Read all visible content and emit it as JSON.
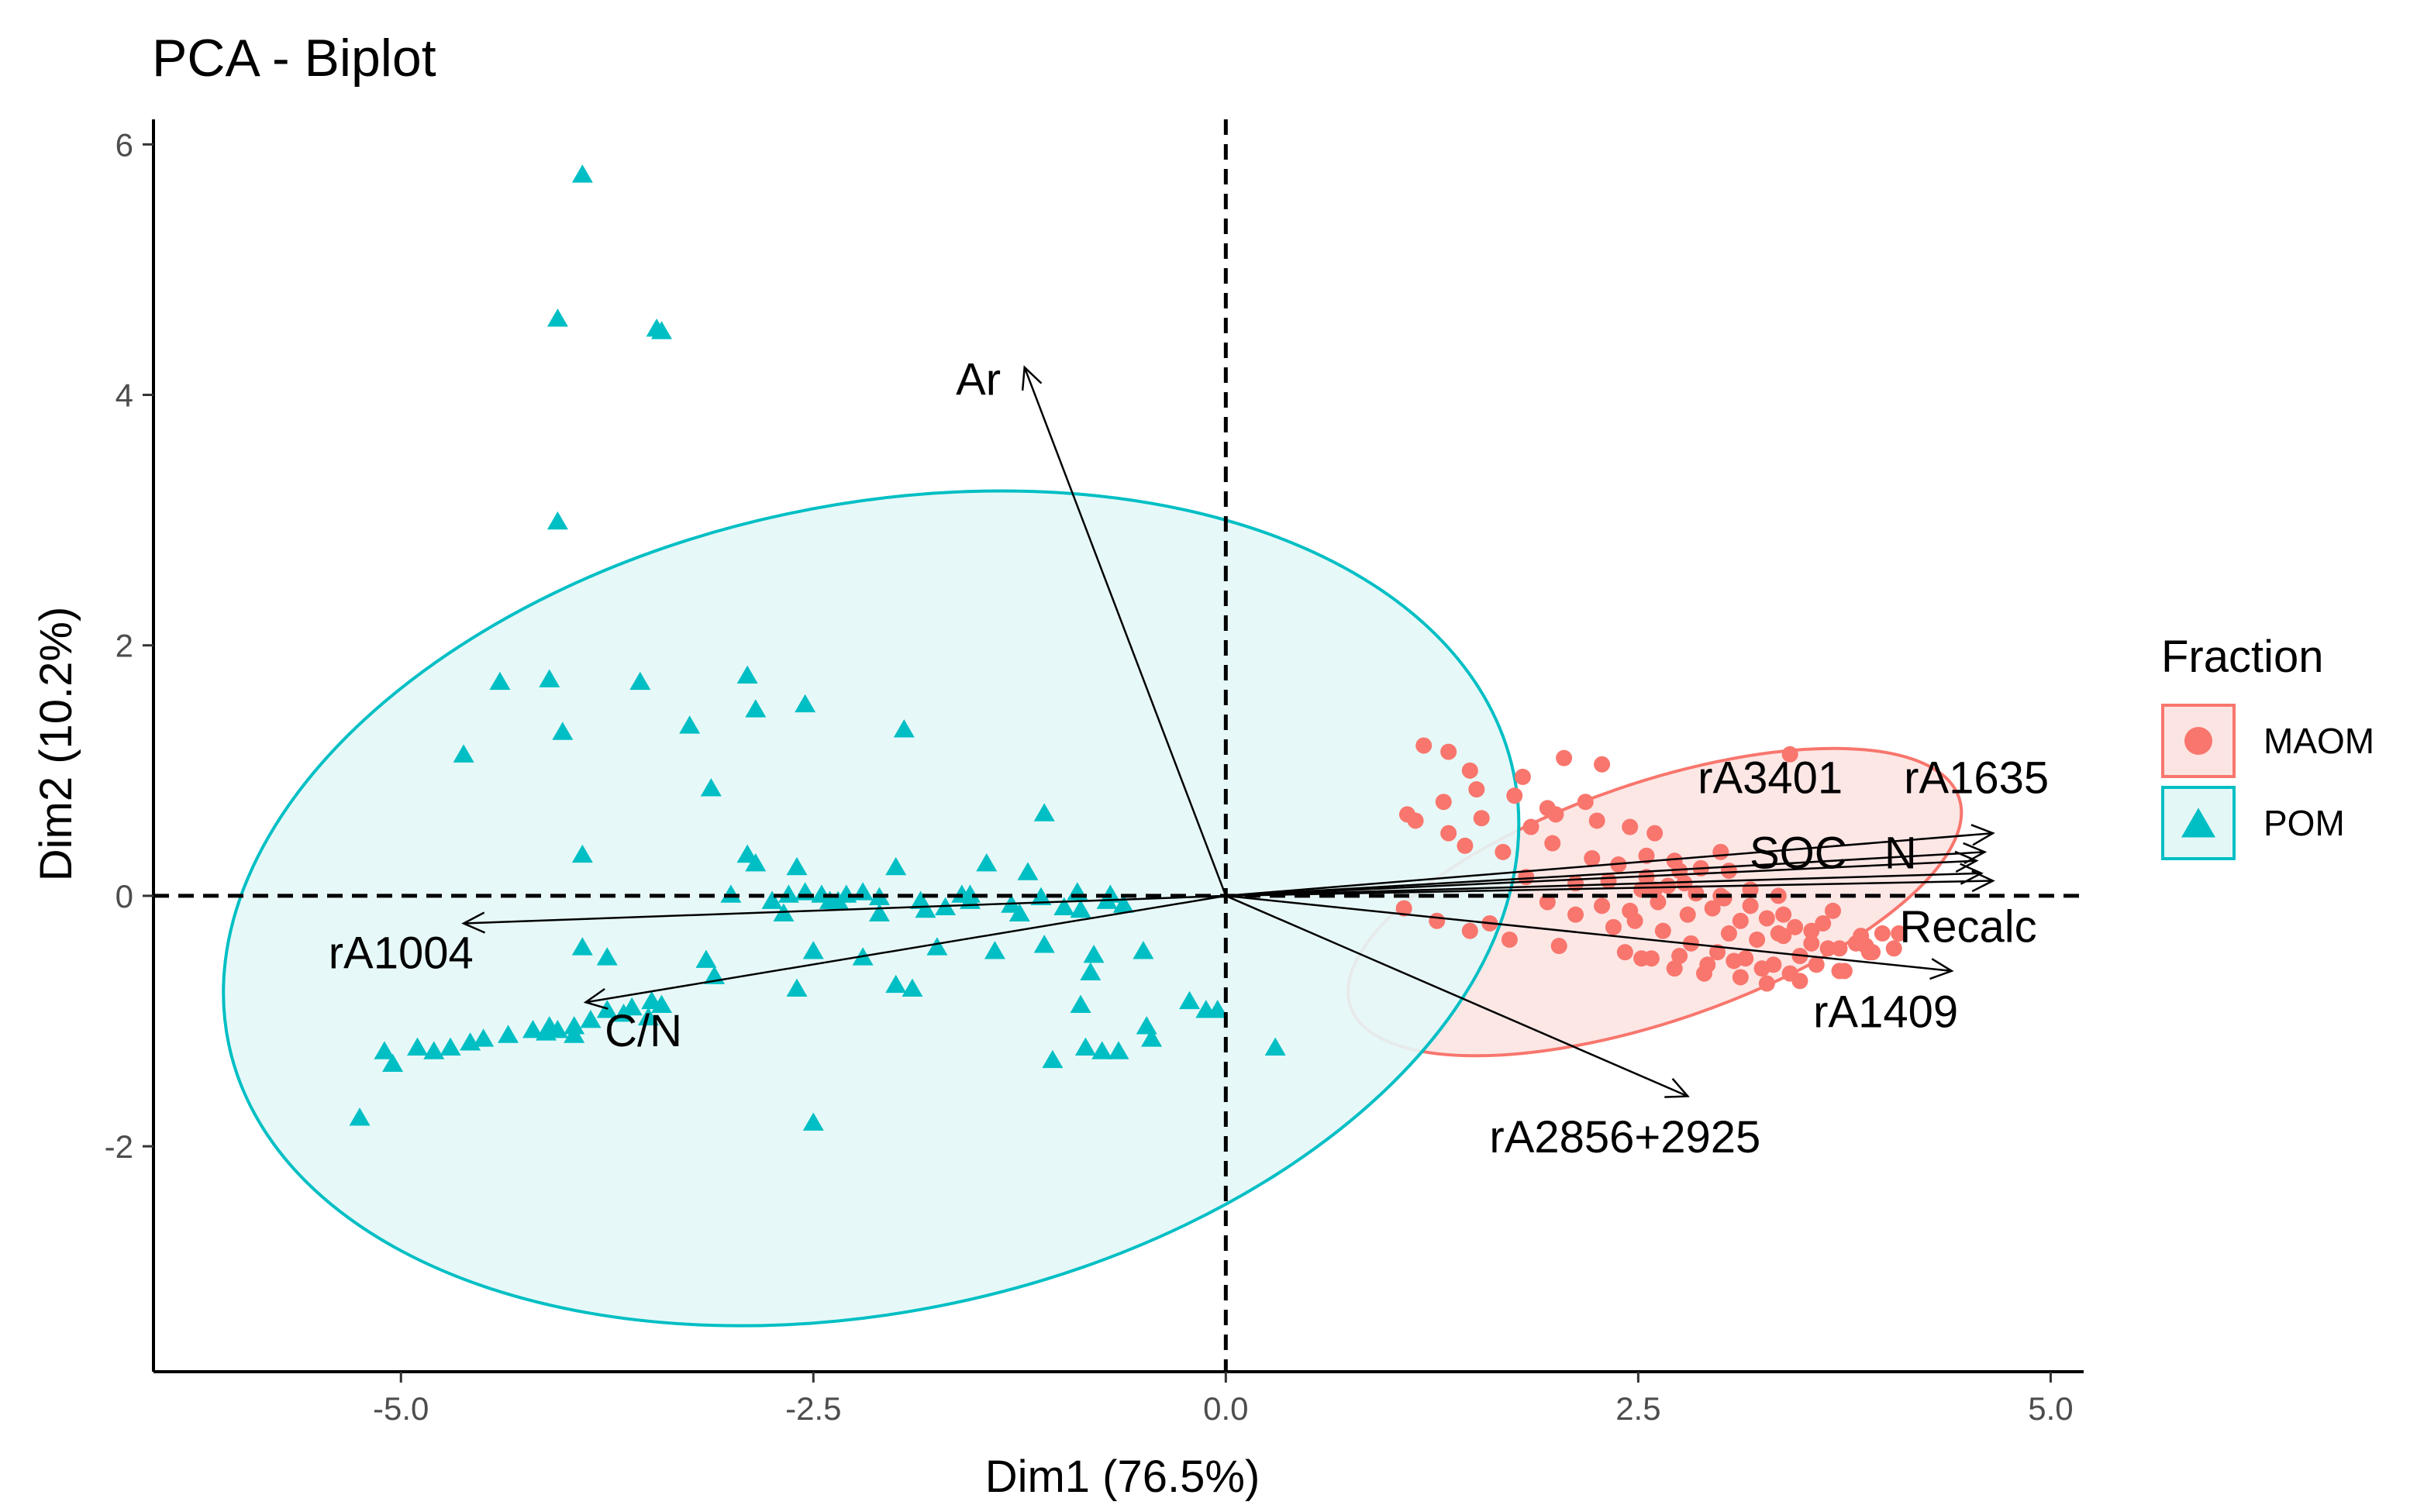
{
  "chart_data": {
    "type": "scatter",
    "title": "PCA - Biplot",
    "xlabel": "Dim1 (76.5%)",
    "ylabel": "Dim2 (10.2%)",
    "xlim": [
      -6.5,
      5.2
    ],
    "ylim": [
      -3.8,
      6.2
    ],
    "x_ticks": [
      -5.0,
      -2.5,
      0.0,
      2.5,
      5.0
    ],
    "x_tick_labels": [
      "-5.0",
      "-2.5",
      "0.0",
      "2.5",
      "5.0"
    ],
    "y_ticks": [
      -2,
      0,
      2,
      4,
      6
    ],
    "y_tick_labels": [
      "-2",
      "0",
      "2",
      "4",
      "6"
    ],
    "grid": false,
    "reference_lines": {
      "x": 0,
      "y": 0,
      "style": "dashed"
    },
    "legend": {
      "title": "Fraction",
      "position": "right",
      "entries": [
        {
          "label": "MAOM",
          "shape": "circle",
          "color": "#f8766d"
        },
        {
          "label": "POM",
          "shape": "triangle",
          "color": "#00bfc4"
        }
      ]
    },
    "series": [
      {
        "name": "MAOM",
        "shape": "circle",
        "color": "#f8766d",
        "ellipse": {
          "cx": 2.6,
          "cy": -0.05,
          "rx": 1.95,
          "ry": 0.95,
          "angle_deg": -19
        },
        "x": [
          1.2,
          1.35,
          1.48,
          1.8,
          2.05,
          2.28,
          3.42,
          1.1,
          1.32,
          1.52,
          1.75,
          1.95,
          2.18,
          1.15,
          1.35,
          1.55,
          1.85,
          2.0,
          2.25,
          2.45,
          2.6,
          1.45,
          1.68,
          1.98,
          2.22,
          2.38,
          2.55,
          2.72,
          2.88,
          3.05,
          1.82,
          2.12,
          2.32,
          2.52,
          2.68,
          2.85,
          3.02,
          3.18,
          3.35,
          2.28,
          2.45,
          2.62,
          2.8,
          2.95,
          3.12,
          3.28,
          3.45,
          3.62,
          3.05,
          3.22,
          3.38,
          3.55,
          3.72,
          3.88,
          2.42,
          2.58,
          2.75,
          2.92,
          3.08,
          3.25,
          3.42,
          3.58,
          3.75,
          3.92,
          4.05,
          2.48,
          2.65,
          2.82,
          2.98,
          3.15,
          3.32,
          3.48,
          3.65,
          3.82,
          3.98,
          1.08,
          1.28,
          1.48,
          1.72,
          2.02,
          2.52,
          2.72,
          2.9,
          3.12,
          3.28,
          3.48,
          3.72,
          3.9,
          4.08,
          1.95,
          2.6,
          2.78,
          3.0,
          3.18,
          3.38,
          3.55,
          3.68,
          3.85,
          1.6,
          2.12,
          2.35,
          2.55,
          2.75,
          3.35,
          3.0
        ],
        "y": [
          1.2,
          1.15,
          1.0,
          0.95,
          1.1,
          1.05,
          1.13,
          0.65,
          0.75,
          0.85,
          0.8,
          0.7,
          0.75,
          0.6,
          0.5,
          0.62,
          0.55,
          0.65,
          0.6,
          0.55,
          0.5,
          0.4,
          0.35,
          0.42,
          0.3,
          0.25,
          0.32,
          0.28,
          0.22,
          0.2,
          0.15,
          0.1,
          0.12,
          0.05,
          0.08,
          0.02,
          -0.02,
          0.05,
          0.0,
          -0.08,
          -0.12,
          -0.05,
          -0.15,
          -0.1,
          -0.2,
          -0.18,
          -0.25,
          -0.22,
          -0.3,
          -0.35,
          -0.32,
          -0.38,
          -0.42,
          -0.4,
          -0.45,
          -0.5,
          -0.48,
          -0.55,
          -0.52,
          -0.58,
          -0.62,
          -0.55,
          -0.6,
          -0.45,
          -0.42,
          -0.2,
          -0.28,
          -0.38,
          -0.45,
          -0.5,
          -0.55,
          -0.48,
          -0.42,
          -0.38,
          -0.3,
          -0.1,
          -0.2,
          -0.28,
          -0.35,
          -0.4,
          -0.5,
          -0.58,
          -0.62,
          -0.65,
          -0.7,
          -0.68,
          -0.6,
          -0.45,
          -0.3,
          -0.05,
          0.05,
          0.1,
          0.0,
          -0.08,
          -0.15,
          -0.28,
          -0.12,
          -0.32,
          -0.22,
          -0.15,
          -0.25,
          0.15,
          0.2,
          -0.3,
          0.35
        ],
        "labels": {
          "shown": false
        }
      },
      {
        "name": "POM",
        "shape": "triangle",
        "color": "#00bfc4",
        "ellipse": {
          "cx": -2.15,
          "cy": -0.1,
          "rx": 3.98,
          "ry": 3.22,
          "angle_deg": -12
        },
        "x": [
          -3.9,
          -4.05,
          -3.45,
          -3.42,
          -4.05,
          -2.9,
          -4.4,
          -4.1,
          -3.55,
          -2.85,
          -2.55,
          -4.02,
          -3.25,
          -1.95,
          -4.62,
          -3.12,
          -1.1,
          -2.9,
          -3.9,
          -2.85,
          -2.6,
          -2.3,
          -2.0,
          -1.6,
          -1.45,
          -1.2,
          -0.9,
          -0.7,
          -3.0,
          -2.75,
          -2.65,
          -2.55,
          -2.45,
          -2.35,
          -2.2,
          -2.1,
          -1.85,
          -1.7,
          -1.55,
          -1.3,
          -1.12,
          -0.88,
          -0.62,
          -2.68,
          -2.4,
          -2.1,
          -1.82,
          -1.55,
          -1.25,
          -0.98,
          -0.72,
          -3.9,
          -3.75,
          -3.15,
          -2.5,
          -2.2,
          -1.75,
          -1.4,
          -1.1,
          -0.8,
          -0.5,
          -3.1,
          -2.6,
          -2.0,
          -1.9,
          -0.82,
          -0.22,
          -0.12,
          -0.05,
          -0.48,
          -0.45,
          -1.05,
          -0.75,
          -0.65,
          -2.5,
          -0.88,
          -5.1,
          -5.05,
          -4.9,
          -4.8,
          -4.7,
          -4.58,
          -4.5,
          -4.35,
          -4.2,
          -4.1,
          -4.05,
          -3.95,
          -3.65,
          -3.5,
          -3.6,
          -3.75,
          -3.85,
          -3.48,
          -3.42,
          -0.85,
          -4.12,
          -3.95,
          -5.25,
          0.3,
          -2.9
        ],
        "y": [
          5.75,
          4.6,
          4.52,
          4.5,
          2.98,
          1.75,
          1.7,
          1.72,
          1.7,
          1.48,
          1.52,
          1.3,
          1.35,
          1.32,
          1.12,
          0.85,
          0.65,
          0.32,
          0.32,
          0.25,
          0.22,
          0.0,
          0.22,
          0.0,
          0.25,
          0.18,
          0.02,
          0.0,
          0.0,
          -0.05,
          0.0,
          0.02,
          0.0,
          -0.05,
          0.02,
          -0.02,
          -0.05,
          -0.1,
          0.0,
          -0.08,
          -0.02,
          -0.12,
          -0.08,
          -0.15,
          -0.05,
          -0.15,
          -0.12,
          -0.05,
          -0.15,
          -0.1,
          -0.05,
          -0.42,
          -0.5,
          -0.52,
          -0.45,
          -0.5,
          -0.42,
          -0.45,
          -0.4,
          -0.48,
          -0.45,
          -0.65,
          -0.75,
          -0.72,
          -0.75,
          -0.62,
          -0.85,
          -0.92,
          -0.92,
          -1.05,
          -1.15,
          -1.32,
          -1.25,
          -1.25,
          -1.82,
          -0.88,
          -1.25,
          -1.35,
          -1.22,
          -1.25,
          -1.22,
          -1.18,
          -1.15,
          -1.12,
          -1.08,
          -1.05,
          -1.08,
          -1.05,
          -0.95,
          -0.98,
          -0.9,
          -0.92,
          -1.0,
          -0.85,
          -0.88,
          -1.22,
          -1.1,
          -1.12,
          -1.78,
          -1.22,
          0.32
        ],
        "labels": {
          "shown": false
        }
      }
    ],
    "variables": [
      {
        "name": "Ar",
        "x": -1.22,
        "y": 4.22,
        "label_x": -1.5,
        "label_y": 4.0,
        "anchor": "middle"
      },
      {
        "name": "rA1004",
        "x": -4.62,
        "y": -0.22,
        "label_x": -5.0,
        "label_y": -0.58,
        "anchor": "middle"
      },
      {
        "name": "C/N",
        "x": -3.88,
        "y": -0.85,
        "label_x": -3.53,
        "label_y": -1.2,
        "anchor": "middle"
      },
      {
        "name": "rA3401",
        "x": 4.6,
        "y": 0.35,
        "label_x": 3.3,
        "label_y": 0.82,
        "anchor": "middle"
      },
      {
        "name": "rA1635",
        "x": 4.65,
        "y": 0.5,
        "label_x": 4.55,
        "label_y": 0.82,
        "anchor": "middle"
      },
      {
        "name": "SOC",
        "x": 4.55,
        "y": 0.28,
        "label_x": 3.47,
        "label_y": 0.22,
        "anchor": "middle"
      },
      {
        "name": "N",
        "x": 4.58,
        "y": 0.18,
        "label_x": 4.09,
        "label_y": 0.22,
        "anchor": "middle"
      },
      {
        "name": "Recalc",
        "x": 4.65,
        "y": 0.12,
        "label_x": 4.5,
        "label_y": -0.37,
        "anchor": "middle"
      },
      {
        "name": "rA1409",
        "x": 4.4,
        "y": -0.6,
        "label_x": 4.0,
        "label_y": -1.05,
        "anchor": "middle"
      },
      {
        "name": "rA2856+2925",
        "x": 2.8,
        "y": -1.6,
        "label_x": 2.42,
        "label_y": -2.05,
        "anchor": "middle"
      }
    ]
  }
}
